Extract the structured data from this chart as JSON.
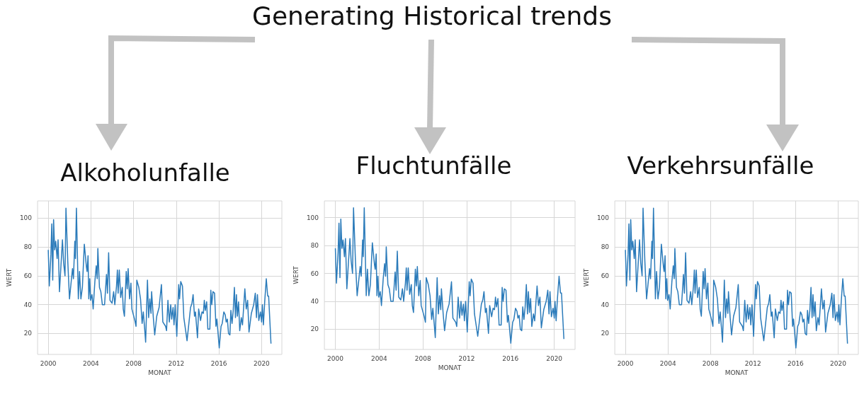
{
  "chart_data": [
    {
      "type": "line",
      "title": "Alkoholunfalle",
      "annotations": [
        "Generating Historical trends"
      ],
      "xlabel": "MONAT",
      "ylabel": "WERT",
      "color": "#2b7bba",
      "grid": true,
      "xlim": [
        1999,
        2021.9
      ],
      "ylim": [
        5.5,
        112
      ],
      "xticks": [
        2000,
        2004,
        2008,
        2012,
        2016,
        2020
      ],
      "yticks": [
        20,
        40,
        60,
        80,
        100
      ],
      "x": [
        2000.0,
        2000.1,
        2000.25,
        2000.33,
        2000.42,
        2000.5,
        2000.6,
        2000.7,
        2000.83,
        2000.92,
        2001.05,
        2001.33,
        2001.44,
        2001.57,
        2001.66,
        2001.83,
        2001.99,
        2002.27,
        2002.36,
        2002.49,
        2002.55,
        2002.64,
        2002.82,
        2002.93,
        2003.06,
        2003.2,
        2003.38,
        2003.58,
        2003.64,
        2003.73,
        2003.8,
        2003.89,
        2003.97,
        2004.1,
        2004.21,
        2004.37,
        2004.5,
        2004.59,
        2004.65,
        2004.8,
        2004.93,
        2005.07,
        2005.28,
        2005.46,
        2005.55,
        2005.66,
        2005.79,
        2005.98,
        2006.13,
        2006.24,
        2006.4,
        2006.48,
        2006.55,
        2006.66,
        2006.79,
        2006.94,
        2007.03,
        2007.14,
        2007.31,
        2007.4,
        2007.49,
        2007.62,
        2007.75,
        2007.84,
        2008.12,
        2008.23,
        2008.3,
        2008.49,
        2008.65,
        2008.8,
        2008.91,
        2009.04,
        2009.13,
        2009.3,
        2009.41,
        2009.52,
        2009.63,
        2009.69,
        2009.85,
        2009.98,
        2010.17,
        2010.39,
        2010.61,
        2010.74,
        2011.0,
        2011.09,
        2011.22,
        2011.35,
        2011.48,
        2011.57,
        2011.7,
        2011.79,
        2011.9,
        2012.05,
        2012.23,
        2012.31,
        2012.42,
        2012.58,
        2012.71,
        2012.88,
        2013.01,
        2013.34,
        2013.47,
        2013.58,
        2013.71,
        2013.8,
        2013.99,
        2014.1,
        2014.28,
        2014.41,
        2014.54,
        2014.63,
        2014.72,
        2014.85,
        2014.96,
        2015.15,
        2015.24,
        2015.33,
        2015.44,
        2015.59,
        2015.72,
        2015.81,
        2016.03,
        2016.2,
        2016.31,
        2016.46,
        2016.59,
        2016.68,
        2016.79,
        2016.9,
        2017.03,
        2017.12,
        2017.23,
        2017.34,
        2017.45,
        2017.55,
        2017.64,
        2017.73,
        2017.84,
        2017.95,
        2018.1,
        2018.21,
        2018.43,
        2018.56,
        2018.69,
        2018.82,
        2019.04,
        2019.26,
        2019.41,
        2019.52,
        2019.61,
        2019.74,
        2019.89,
        2020.0,
        2020.07,
        2020.17,
        2020.3,
        2020.44,
        2020.57,
        2020.66,
        2020.88
      ],
      "values": [
        78,
        53,
        75,
        96,
        57,
        99,
        78,
        84,
        72,
        85,
        49,
        85,
        69,
        60,
        107,
        70,
        44,
        65,
        58,
        84,
        72,
        107,
        44,
        63,
        44,
        52,
        82,
        66,
        63,
        74,
        44,
        58,
        43,
        47,
        37,
        56,
        67,
        58,
        79,
        52,
        49,
        40,
        40,
        61,
        48,
        76,
        43,
        41,
        49,
        40,
        53,
        64,
        48,
        64,
        45,
        52,
        37,
        32,
        63,
        51,
        65,
        44,
        55,
        37,
        29,
        25,
        57,
        52,
        44,
        27,
        35,
        23,
        14,
        57,
        31,
        44,
        34,
        49,
        31,
        19,
        32,
        38,
        54,
        28,
        25,
        22,
        43,
        28,
        40,
        30,
        38,
        26,
        40,
        18,
        54,
        44,
        56,
        53,
        31,
        22,
        15,
        38,
        41,
        47,
        32,
        35,
        17,
        37,
        29,
        35,
        34,
        43,
        36,
        42,
        23,
        23,
        50,
        40,
        49,
        48,
        25,
        30,
        10,
        25,
        27,
        35,
        33,
        28,
        30,
        20,
        19,
        36,
        27,
        36,
        52,
        31,
        47,
        32,
        42,
        22,
        31,
        26,
        51,
        37,
        43,
        21,
        34,
        40,
        48,
        31,
        47,
        29,
        35,
        28,
        40,
        26,
        43,
        58,
        46,
        46,
        13
      ]
    },
    {
      "type": "line",
      "title": "Fluchtunfälle",
      "xlabel": "MONAT",
      "ylabel": "WERT",
      "color": "#2b7bba",
      "grid": true,
      "xlim": [
        1999,
        2021.9
      ],
      "ylim": [
        5.5,
        112
      ],
      "xticks": [
        2000,
        2004,
        2008,
        2012,
        2016,
        2020
      ],
      "yticks": [
        20,
        40,
        60,
        80,
        100
      ],
      "x": [
        2000.0,
        2000.1,
        2000.25,
        2000.33,
        2000.42,
        2000.5,
        2000.6,
        2000.7,
        2000.83,
        2000.92,
        2001.05,
        2001.33,
        2001.44,
        2001.57,
        2001.66,
        2001.83,
        2001.99,
        2002.27,
        2002.36,
        2002.49,
        2002.55,
        2002.64,
        2002.82,
        2002.93,
        2003.06,
        2003.2,
        2003.38,
        2003.58,
        2003.64,
        2003.73,
        2003.8,
        2003.89,
        2003.97,
        2004.1,
        2004.21,
        2004.37,
        2004.5,
        2004.59,
        2004.65,
        2004.8,
        2004.93,
        2005.07,
        2005.28,
        2005.46,
        2005.55,
        2005.66,
        2005.79,
        2005.98,
        2006.13,
        2006.24,
        2006.4,
        2006.48,
        2006.55,
        2006.66,
        2006.79,
        2006.94,
        2007.03,
        2007.14,
        2007.31,
        2007.4,
        2007.49,
        2007.62,
        2007.75,
        2007.84,
        2008.12,
        2008.23,
        2008.3,
        2008.49,
        2008.65,
        2008.8,
        2008.91,
        2009.04,
        2009.13,
        2009.3,
        2009.41,
        2009.52,
        2009.63,
        2009.69,
        2009.85,
        2009.98,
        2010.17,
        2010.39,
        2010.61,
        2010.74,
        2011.0,
        2011.09,
        2011.22,
        2011.35,
        2011.48,
        2011.57,
        2011.7,
        2011.79,
        2011.9,
        2012.05,
        2012.23,
        2012.31,
        2012.42,
        2012.58,
        2012.71,
        2012.88,
        2013.01,
        2013.34,
        2013.47,
        2013.58,
        2013.71,
        2013.8,
        2013.99,
        2014.1,
        2014.28,
        2014.41,
        2014.54,
        2014.63,
        2014.72,
        2014.85,
        2014.96,
        2015.15,
        2015.24,
        2015.33,
        2015.44,
        2015.59,
        2015.72,
        2015.81,
        2016.03,
        2016.2,
        2016.31,
        2016.46,
        2016.59,
        2016.68,
        2016.79,
        2016.9,
        2017.03,
        2017.12,
        2017.23,
        2017.34,
        2017.45,
        2017.55,
        2017.64,
        2017.73,
        2017.84,
        2017.95,
        2018.1,
        2018.21,
        2018.43,
        2018.56,
        2018.69,
        2018.82,
        2019.04,
        2019.26,
        2019.41,
        2019.52,
        2019.61,
        2019.74,
        2019.89,
        2020.0,
        2020.07,
        2020.17,
        2020.3,
        2020.44,
        2020.57,
        2020.66,
        2020.88
      ],
      "values": [
        78,
        53,
        75,
        96,
        57,
        99,
        78,
        84,
        72,
        85,
        49,
        85,
        69,
        60,
        107,
        70,
        44,
        65,
        58,
        84,
        72,
        107,
        44,
        63,
        44,
        52,
        82,
        66,
        63,
        74,
        44,
        58,
        43,
        47,
        37,
        56,
        67,
        58,
        79,
        52,
        49,
        40,
        40,
        61,
        48,
        76,
        43,
        41,
        49,
        40,
        53,
        64,
        48,
        64,
        45,
        52,
        37,
        32,
        63,
        51,
        65,
        44,
        55,
        37,
        29,
        25,
        57,
        52,
        44,
        27,
        35,
        23,
        14,
        57,
        31,
        44,
        34,
        49,
        31,
        19,
        32,
        38,
        54,
        28,
        25,
        22,
        43,
        28,
        40,
        30,
        38,
        26,
        40,
        18,
        54,
        44,
        56,
        53,
        31,
        22,
        15,
        38,
        41,
        47,
        32,
        35,
        17,
        37,
        29,
        35,
        34,
        43,
        36,
        42,
        23,
        23,
        50,
        40,
        49,
        48,
        25,
        30,
        10,
        25,
        27,
        35,
        33,
        28,
        30,
        20,
        19,
        36,
        27,
        36,
        52,
        31,
        47,
        32,
        42,
        22,
        31,
        26,
        51,
        37,
        43,
        21,
        34,
        40,
        48,
        31,
        47,
        29,
        35,
        28,
        40,
        26,
        43,
        58,
        46,
        46,
        13
      ]
    },
    {
      "type": "line",
      "title": "Verkehrsunfälle",
      "xlabel": "MONAT",
      "ylabel": "WERT",
      "color": "#2b7bba",
      "grid": true,
      "xlim": [
        1999,
        2021.9
      ],
      "ylim": [
        5.5,
        112
      ],
      "xticks": [
        2000,
        2004,
        2008,
        2012,
        2016,
        2020
      ],
      "yticks": [
        20,
        40,
        60,
        80,
        100
      ],
      "x": [
        2000.0,
        2000.1,
        2000.25,
        2000.33,
        2000.42,
        2000.5,
        2000.6,
        2000.7,
        2000.83,
        2000.92,
        2001.05,
        2001.33,
        2001.44,
        2001.57,
        2001.66,
        2001.83,
        2001.99,
        2002.27,
        2002.36,
        2002.49,
        2002.55,
        2002.64,
        2002.82,
        2002.93,
        2003.06,
        2003.2,
        2003.38,
        2003.58,
        2003.64,
        2003.73,
        2003.8,
        2003.89,
        2003.97,
        2004.1,
        2004.21,
        2004.37,
        2004.5,
        2004.59,
        2004.65,
        2004.8,
        2004.93,
        2005.07,
        2005.28,
        2005.46,
        2005.55,
        2005.66,
        2005.79,
        2005.98,
        2006.13,
        2006.24,
        2006.4,
        2006.48,
        2006.55,
        2006.66,
        2006.79,
        2006.94,
        2007.03,
        2007.14,
        2007.31,
        2007.4,
        2007.49,
        2007.62,
        2007.75,
        2007.84,
        2008.12,
        2008.23,
        2008.3,
        2008.49,
        2008.65,
        2008.8,
        2008.91,
        2009.04,
        2009.13,
        2009.3,
        2009.41,
        2009.52,
        2009.63,
        2009.69,
        2009.85,
        2009.98,
        2010.17,
        2010.39,
        2010.61,
        2010.74,
        2011.0,
        2011.09,
        2011.22,
        2011.35,
        2011.48,
        2011.57,
        2011.7,
        2011.79,
        2011.9,
        2012.05,
        2012.23,
        2012.31,
        2012.42,
        2012.58,
        2012.71,
        2012.88,
        2013.01,
        2013.34,
        2013.47,
        2013.58,
        2013.71,
        2013.8,
        2013.99,
        2014.1,
        2014.28,
        2014.41,
        2014.54,
        2014.63,
        2014.72,
        2014.85,
        2014.96,
        2015.15,
        2015.24,
        2015.33,
        2015.44,
        2015.59,
        2015.72,
        2015.81,
        2016.03,
        2016.2,
        2016.31,
        2016.46,
        2016.59,
        2016.68,
        2016.79,
        2016.9,
        2017.03,
        2017.12,
        2017.23,
        2017.34,
        2017.45,
        2017.55,
        2017.64,
        2017.73,
        2017.84,
        2017.95,
        2018.1,
        2018.21,
        2018.43,
        2018.56,
        2018.69,
        2018.82,
        2019.04,
        2019.26,
        2019.41,
        2019.52,
        2019.61,
        2019.74,
        2019.89,
        2020.0,
        2020.07,
        2020.17,
        2020.3,
        2020.44,
        2020.57,
        2020.66,
        2020.88
      ],
      "values": [
        78,
        53,
        75,
        96,
        57,
        99,
        78,
        84,
        72,
        85,
        49,
        85,
        69,
        60,
        107,
        70,
        44,
        65,
        58,
        84,
        72,
        107,
        44,
        63,
        44,
        52,
        82,
        66,
        63,
        74,
        44,
        58,
        43,
        47,
        37,
        56,
        67,
        58,
        79,
        52,
        49,
        40,
        40,
        61,
        48,
        76,
        43,
        41,
        49,
        40,
        53,
        64,
        48,
        64,
        45,
        52,
        37,
        32,
        63,
        51,
        65,
        44,
        55,
        37,
        29,
        25,
        57,
        52,
        44,
        27,
        35,
        23,
        14,
        57,
        31,
        44,
        34,
        49,
        31,
        19,
        32,
        38,
        54,
        28,
        25,
        22,
        43,
        28,
        40,
        30,
        38,
        26,
        40,
        18,
        54,
        44,
        56,
        53,
        31,
        22,
        15,
        38,
        41,
        47,
        32,
        35,
        17,
        37,
        29,
        35,
        34,
        43,
        36,
        42,
        23,
        23,
        50,
        40,
        49,
        48,
        25,
        30,
        10,
        25,
        27,
        35,
        33,
        28,
        30,
        20,
        19,
        36,
        27,
        36,
        52,
        31,
        47,
        32,
        42,
        22,
        31,
        26,
        51,
        37,
        43,
        21,
        34,
        40,
        48,
        31,
        47,
        29,
        35,
        28,
        40,
        26,
        43,
        58,
        46,
        46,
        13
      ]
    }
  ]
}
